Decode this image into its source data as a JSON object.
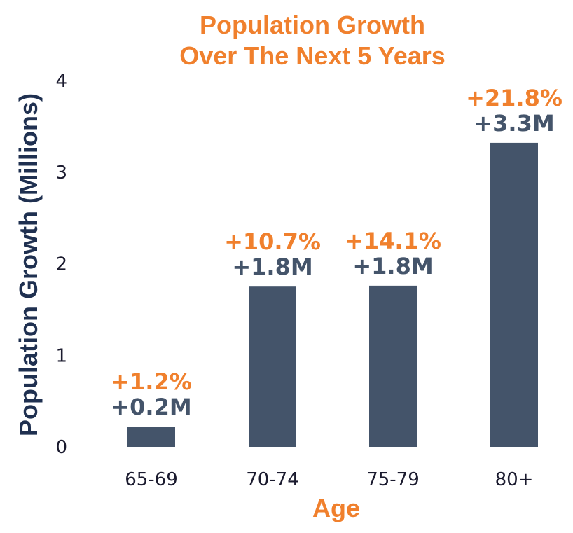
{
  "chart_data": {
    "type": "bar",
    "title_lines": [
      "Population Growth",
      "Over The Next 5 Years"
    ],
    "xlabel": "Age",
    "ylabel": "Population Growth (Millions)",
    "categories": [
      "65-69",
      "70-74",
      "75-79",
      "80+"
    ],
    "values": [
      0.22,
      1.75,
      1.76,
      3.32
    ],
    "pct_labels": [
      "+1.2%",
      "+10.7%",
      "+14.1%",
      "+21.8%"
    ],
    "value_labels": [
      "+0.2M",
      "+1.8M",
      "+1.8M",
      "+3.3M"
    ],
    "yticks": [
      "0",
      "1",
      "2",
      "3",
      "4"
    ],
    "ylim": [
      0,
      4
    ],
    "grid": false
  },
  "colors": {
    "bar": "#44546a",
    "accent": "#f0802d",
    "axis_label": "#1f3050",
    "tick": "#1a1a2e"
  }
}
